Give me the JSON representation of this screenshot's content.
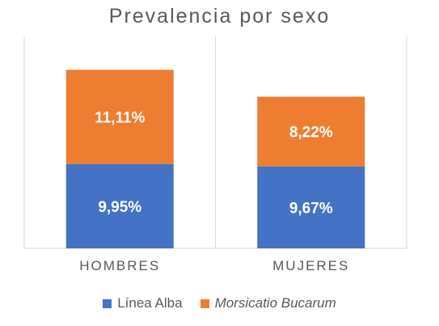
{
  "chart_data": {
    "type": "bar",
    "stacked": true,
    "title": "Prevalencia por sexo",
    "categories": [
      "HOMBRES",
      "MUJERES"
    ],
    "series": [
      {
        "name": "Línea Alba",
        "values": [
          9.95,
          9.67
        ],
        "labels": [
          "9,95%",
          "9,67%"
        ],
        "color": "#4472C4"
      },
      {
        "name": "Morsicatio Bucarum",
        "values": [
          11.11,
          8.22
        ],
        "labels": [
          "11,11%",
          "8,22%"
        ],
        "color": "#ED7D31"
      }
    ],
    "ylim": [
      0,
      25
    ],
    "grid": false,
    "legend_position": "bottom"
  }
}
